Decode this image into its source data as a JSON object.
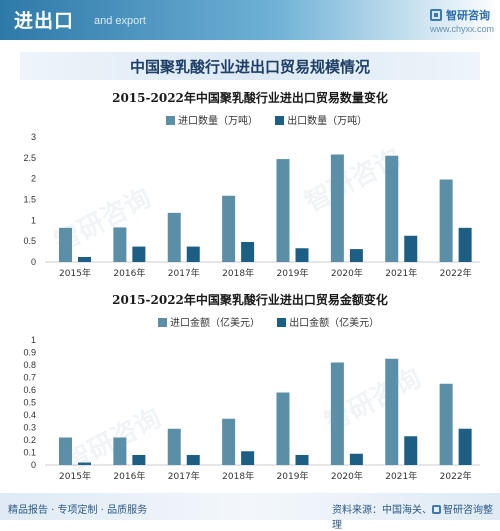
{
  "header": {
    "title": "进出口",
    "subtitle": "and export",
    "brand": "智研咨询",
    "website": "www.chyxx.com"
  },
  "main_title": "中国聚乳酸行业进出口贸易规模情况",
  "watermark_text": "智研咨询",
  "footer": {
    "left": "精品报告 · 专项定制 · 品质服务",
    "source_prefix": "资料来源：中国海关、",
    "source_brand": "智研咨询整理"
  },
  "colors": {
    "import": "#5b8fa8",
    "export": "#1d5f84"
  },
  "chart_data": [
    {
      "type": "bar",
      "title": "2015-2022年中国聚乳酸行业进出口贸易数量变化",
      "categories": [
        "2015年",
        "2016年",
        "2017年",
        "2018年",
        "2019年",
        "2020年",
        "2021年",
        "2022年"
      ],
      "series": [
        {
          "name": "进口数量（万吨）",
          "values": [
            0.82,
            0.83,
            1.18,
            1.59,
            2.47,
            2.58,
            2.55,
            1.98
          ]
        },
        {
          "name": "出口数量（万吨）",
          "values": [
            0.12,
            0.37,
            0.37,
            0.48,
            0.33,
            0.31,
            0.63,
            0.82
          ]
        }
      ],
      "yticks": [
        "0",
        "0.5",
        "1",
        "1.5",
        "2",
        "2.5",
        "3"
      ],
      "ylim": [
        0,
        3
      ],
      "grid": false,
      "legend": "top-center"
    },
    {
      "type": "bar",
      "title": "2015-2022年中国聚乳酸行业进出口贸易金额变化",
      "categories": [
        "2015年",
        "2016年",
        "2017年",
        "2018年",
        "2019年",
        "2020年",
        "2021年",
        "2022年"
      ],
      "series": [
        {
          "name": "进口金额（亿美元）",
          "values": [
            0.22,
            0.22,
            0.29,
            0.37,
            0.58,
            0.82,
            0.85,
            0.65
          ]
        },
        {
          "name": "出口金额（亿美元）",
          "values": [
            0.02,
            0.08,
            0.08,
            0.11,
            0.08,
            0.09,
            0.23,
            0.29
          ]
        }
      ],
      "yticks": [
        "0",
        "0.1",
        "0.2",
        "0.3",
        "0.4",
        "0.5",
        "0.6",
        "0.7",
        "0.8",
        "0.9",
        "1"
      ],
      "ylim": [
        0,
        1
      ],
      "grid": false,
      "legend": "top-center"
    }
  ]
}
